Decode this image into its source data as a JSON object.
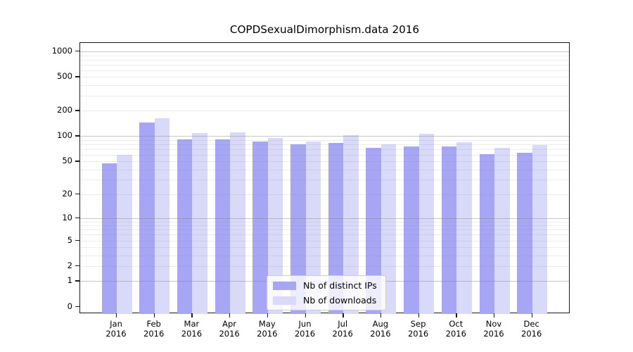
{
  "chart_data": {
    "type": "bar",
    "title": "COPDSexualDimorphism.data 2016",
    "categories": [
      "Jan",
      "Feb",
      "Mar",
      "Apr",
      "May",
      "Jun",
      "Jul",
      "Aug",
      "Sep",
      "Oct",
      "Nov",
      "Dec"
    ],
    "category_year": "2016",
    "series": [
      {
        "name": "Nb of distinct IPs",
        "color": "#a6a6f5",
        "values": [
          47,
          145,
          92,
          91,
          87,
          80,
          83,
          73,
          76,
          75,
          61,
          63
        ]
      },
      {
        "name": "Nb of downloads",
        "color": "#d9d9fa",
        "values": [
          60,
          163,
          109,
          112,
          96,
          86,
          103,
          80,
          107,
          85,
          73,
          79
        ]
      }
    ],
    "yticks": [
      0,
      1,
      2,
      5,
      10,
      20,
      50,
      100,
      200,
      500,
      1000
    ],
    "yscale": "log1p",
    "ylim": [
      0,
      1250
    ],
    "grid": true,
    "legend": {
      "position": "inside-bottom-center"
    },
    "axis_color": "#1a1a1a",
    "grid_major_color": "rgba(130,130,130,0.45)",
    "grid_minor_color": "rgba(130,130,130,0.14)"
  }
}
